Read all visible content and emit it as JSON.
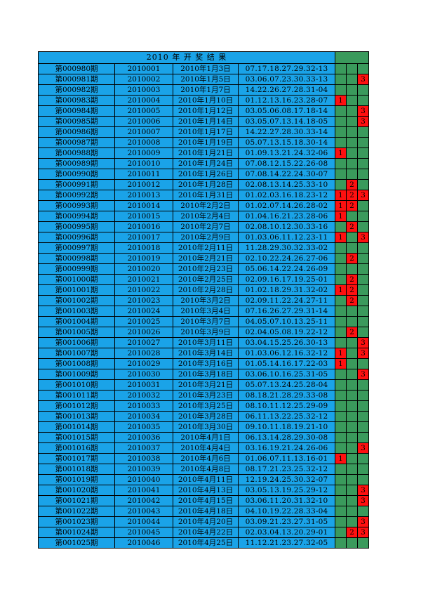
{
  "title": "2010 年 开 奖 结 果",
  "colors": {
    "blue": "#1aa3e8",
    "green": "#3a9a5c",
    "red": "#ff1010"
  },
  "rows": [
    {
      "issue": "第000980期",
      "code": "2010001",
      "date": "2010年1月3日",
      "nums": "07.17.18.27.29.32-13",
      "m": [
        "",
        "",
        ""
      ]
    },
    {
      "issue": "第000981期",
      "code": "2010002",
      "date": "2010年1月5日",
      "nums": "03.06.07.23.30.33-13",
      "m": [
        "",
        "",
        "3"
      ]
    },
    {
      "issue": "第000982期",
      "code": "2010003",
      "date": "2010年1月7日",
      "nums": "14.22.26.27.28.31-04",
      "m": [
        "",
        "",
        ""
      ]
    },
    {
      "issue": "第000983期",
      "code": "2010004",
      "date": "2010年1月10日",
      "nums": "01.12.13.16.23.28-07",
      "m": [
        "1",
        "",
        ""
      ]
    },
    {
      "issue": "第000984期",
      "code": "2010005",
      "date": "2010年1月12日",
      "nums": "03.05.06.08.17.18-14",
      "m": [
        "",
        "",
        "3"
      ]
    },
    {
      "issue": "第000985期",
      "code": "2010006",
      "date": "2010年1月14日",
      "nums": "03.05.07.13.14.18-05",
      "m": [
        "",
        "",
        "3"
      ]
    },
    {
      "issue": "第000986期",
      "code": "2010007",
      "date": "2010年1月17日",
      "nums": "14.22.27.28.30.33-14",
      "m": [
        "",
        "",
        ""
      ]
    },
    {
      "issue": "第000987期",
      "code": "2010008",
      "date": "2010年1月19日",
      "nums": "05.07.13.15.18.30-14",
      "m": [
        "",
        "",
        ""
      ]
    },
    {
      "issue": "第000988期",
      "code": "2010009",
      "date": "2010年1月21日",
      "nums": "01.09.13.21.24.32-06",
      "m": [
        "1",
        "",
        ""
      ]
    },
    {
      "issue": "第000989期",
      "code": "2010010",
      "date": "2010年1月24日",
      "nums": "07.08.12.15.22.26-08",
      "m": [
        "",
        "",
        ""
      ]
    },
    {
      "issue": "第000990期",
      "code": "2010011",
      "date": "2010年1月26日",
      "nums": "07.08.14.22.24.30-07",
      "m": [
        "",
        "",
        ""
      ]
    },
    {
      "issue": "第000991期",
      "code": "2010012",
      "date": "2010年1月28日",
      "nums": "02.08.13.14.25.33-10",
      "m": [
        "",
        "2",
        ""
      ]
    },
    {
      "issue": "第000992期",
      "code": "2010013",
      "date": "2010年1月31日",
      "nums": "01.02.03.16.18.23-12",
      "m": [
        "1",
        "2",
        "3"
      ]
    },
    {
      "issue": "第000993期",
      "code": "2010014",
      "date": "2010年2月2日",
      "nums": "01.02.07.14.26.28-02",
      "m": [
        "1",
        "2",
        ""
      ]
    },
    {
      "issue": "第000994期",
      "code": "2010015",
      "date": "2010年2月4日",
      "nums": "01.04.16.21.23.28-06",
      "m": [
        "1",
        "",
        ""
      ]
    },
    {
      "issue": "第000995期",
      "code": "2010016",
      "date": "2010年2月7日",
      "nums": "02.08.10.12.30.33-16",
      "m": [
        "",
        "2",
        ""
      ]
    },
    {
      "issue": "第000996期",
      "code": "2010017",
      "date": "2010年2月9日",
      "nums": "01.03.06.11.12.23-11",
      "m": [
        "1",
        "",
        "3"
      ]
    },
    {
      "issue": "第000997期",
      "code": "2010018",
      "date": "2010年2月11日",
      "nums": "11.28.29.30.32.33-02",
      "m": [
        "",
        "",
        ""
      ]
    },
    {
      "issue": "第000998期",
      "code": "2010019",
      "date": "2010年2月21日",
      "nums": "02.10.22.24.26.27-06",
      "m": [
        "",
        "2",
        ""
      ]
    },
    {
      "issue": "第000999期",
      "code": "2010020",
      "date": "2010年2月23日",
      "nums": "05.06.14.22.24.26-09",
      "m": [
        "",
        "",
        ""
      ]
    },
    {
      "issue": "第001000期",
      "code": "2010021",
      "date": "2010年2月25日",
      "nums": "02.09.16.17.19.25-01",
      "m": [
        "",
        "2",
        ""
      ]
    },
    {
      "issue": "第001001期",
      "code": "2010022",
      "date": "2010年2月28日",
      "nums": "01.02.18.29.31.32-02",
      "m": [
        "1",
        "2",
        ""
      ]
    },
    {
      "issue": "第001002期",
      "code": "2010023",
      "date": "2010年3月2日",
      "nums": "02.09.11.22.24.27-11",
      "m": [
        "",
        "2",
        ""
      ]
    },
    {
      "issue": "第001003期",
      "code": "2010024",
      "date": "2010年3月4日",
      "nums": "07.16.26.27.29.31-14",
      "m": [
        "",
        "",
        ""
      ]
    },
    {
      "issue": "第001004期",
      "code": "2010025",
      "date": "2010年3月7日",
      "nums": "04.05.07.10.13.25-11",
      "m": [
        "",
        "",
        ""
      ]
    },
    {
      "issue": "第001005期",
      "code": "2010026",
      "date": "2010年3月9日",
      "nums": "02.04.05.08.19.22-12",
      "m": [
        "",
        "2",
        ""
      ]
    },
    {
      "issue": "第001006期",
      "code": "2010027",
      "date": "2010年3月11日",
      "nums": "03.04.15.25.26.30-13",
      "m": [
        "",
        "",
        "3"
      ]
    },
    {
      "issue": "第001007期",
      "code": "2010028",
      "date": "2010年3月14日",
      "nums": "01.03.06.12.16.32-12",
      "m": [
        "1",
        "",
        "3"
      ]
    },
    {
      "issue": "第001008期",
      "code": "2010029",
      "date": "2010年3月16日",
      "nums": "01.05.14.16.17.22-03",
      "m": [
        "1",
        "",
        ""
      ]
    },
    {
      "issue": "第001009期",
      "code": "2010030",
      "date": "2010年3月18日",
      "nums": "03.06.10.16.25.31-05",
      "m": [
        "",
        "",
        "3"
      ]
    },
    {
      "issue": "第001010期",
      "code": "2010031",
      "date": "2010年3月21日",
      "nums": "05.07.13.24.25.28-04",
      "m": [
        "",
        "",
        ""
      ]
    },
    {
      "issue": "第001011期",
      "code": "2010032",
      "date": "2010年3月23日",
      "nums": "08.18.21.28.29.33-08",
      "m": [
        "",
        "",
        ""
      ]
    },
    {
      "issue": "第001012期",
      "code": "2010033",
      "date": "2010年3月25日",
      "nums": "08.10.11.12.25.29-09",
      "m": [
        "",
        "",
        ""
      ]
    },
    {
      "issue": "第001013期",
      "code": "2010034",
      "date": "2010年3月28日",
      "nums": "06.11.13.22.25.32-12",
      "m": [
        "",
        "",
        ""
      ]
    },
    {
      "issue": "第001014期",
      "code": "2010035",
      "date": "2010年3月30日",
      "nums": "09.10.11.18.19.21-10",
      "m": [
        "",
        "",
        ""
      ]
    },
    {
      "issue": "第001015期",
      "code": "2010036",
      "date": "2010年4月1日",
      "nums": "06.13.14.28.29.30-08",
      "m": [
        "",
        "",
        ""
      ]
    },
    {
      "issue": "第001016期",
      "code": "2010037",
      "date": "2010年4月4日",
      "nums": "03.16.19.21.24.26-06",
      "m": [
        "",
        "",
        "3"
      ]
    },
    {
      "issue": "第001017期",
      "code": "2010038",
      "date": "2010年4月6日",
      "nums": "01.06.07.11.13.16-01",
      "m": [
        "1",
        "",
        ""
      ]
    },
    {
      "issue": "第001018期",
      "code": "2010039",
      "date": "2010年4月8日",
      "nums": "08.17.21.23.25.32-12",
      "m": [
        "",
        "",
        ""
      ]
    },
    {
      "issue": "第001019期",
      "code": "2010040",
      "date": "2010年4月11日",
      "nums": "12.19.24.25.30.32-07",
      "m": [
        "",
        "",
        ""
      ]
    },
    {
      "issue": "第001020期",
      "code": "2010041",
      "date": "2010年4月13日",
      "nums": "03.05.13.19.25.29-12",
      "m": [
        "",
        "",
        "3"
      ]
    },
    {
      "issue": "第001021期",
      "code": "2010042",
      "date": "2010年4月15日",
      "nums": "03.06.11.20.31.32-10",
      "m": [
        "",
        "",
        "3"
      ]
    },
    {
      "issue": "第001022期",
      "code": "2010043",
      "date": "2010年4月18日",
      "nums": "04.10.19.22.28.33-04",
      "m": [
        "",
        "",
        ""
      ]
    },
    {
      "issue": "第001023期",
      "code": "2010044",
      "date": "2010年4月20日",
      "nums": "03.09.21.23.27.31-05",
      "m": [
        "",
        "",
        "3"
      ]
    },
    {
      "issue": "第001024期",
      "code": "2010045",
      "date": "2010年4月22日",
      "nums": "02.03.04.13.20.29-01",
      "m": [
        "",
        "2",
        "3"
      ]
    },
    {
      "issue": "第001025期",
      "code": "2010046",
      "date": "2010年4月25日",
      "nums": "11.12.21.23.27.32-05",
      "m": [
        "",
        "",
        ""
      ]
    }
  ]
}
